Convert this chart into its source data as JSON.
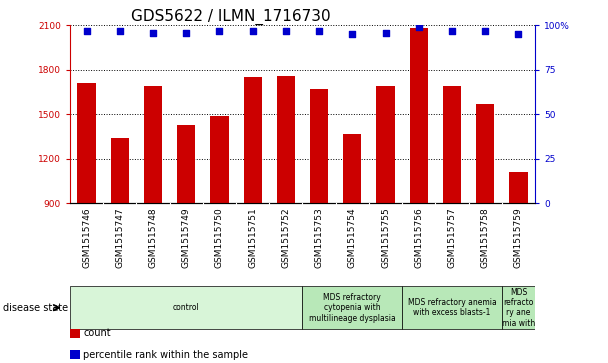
{
  "title": "GDS5622 / ILMN_1716730",
  "samples": [
    "GSM1515746",
    "GSM1515747",
    "GSM1515748",
    "GSM1515749",
    "GSM1515750",
    "GSM1515751",
    "GSM1515752",
    "GSM1515753",
    "GSM1515754",
    "GSM1515755",
    "GSM1515756",
    "GSM1515757",
    "GSM1515758",
    "GSM1515759"
  ],
  "counts": [
    1710,
    1340,
    1690,
    1430,
    1490,
    1750,
    1760,
    1670,
    1370,
    1690,
    2080,
    1690,
    1570,
    1110
  ],
  "percentile_ranks": [
    97,
    97,
    96,
    96,
    97,
    97,
    97,
    97,
    95,
    96,
    99,
    97,
    97,
    95
  ],
  "bar_color": "#cc0000",
  "dot_color": "#0000cc",
  "ylim_left": [
    900,
    2100
  ],
  "ylim_right": [
    0,
    100
  ],
  "yticks_left": [
    900,
    1200,
    1500,
    1800,
    2100
  ],
  "yticks_right": [
    0,
    25,
    50,
    75,
    100
  ],
  "ytick_labels_right": [
    "0",
    "25",
    "50",
    "75",
    "100%"
  ],
  "disease_groups": [
    {
      "label": "control",
      "start": 0,
      "end": 7,
      "color": "#d8f5d8"
    },
    {
      "label": "MDS refractory\ncytopenia with\nmultilineage dysplasia",
      "start": 7,
      "end": 10,
      "color": "#b8e8b8"
    },
    {
      "label": "MDS refractory anemia\nwith excess blasts-1",
      "start": 10,
      "end": 13,
      "color": "#b8e8b8"
    },
    {
      "label": "MDS\nrefracto\nry ane\nmia with",
      "start": 13,
      "end": 14,
      "color": "#b8e8b8"
    }
  ],
  "disease_state_label": "disease state",
  "legend_count_label": "count",
  "legend_percentile_label": "percentile rank within the sample",
  "background_color": "#ffffff",
  "xtick_bg_color": "#c8c8c8",
  "title_fontsize": 11,
  "tick_fontsize": 6.5,
  "disease_fontsize": 5.5,
  "legend_fontsize": 7
}
